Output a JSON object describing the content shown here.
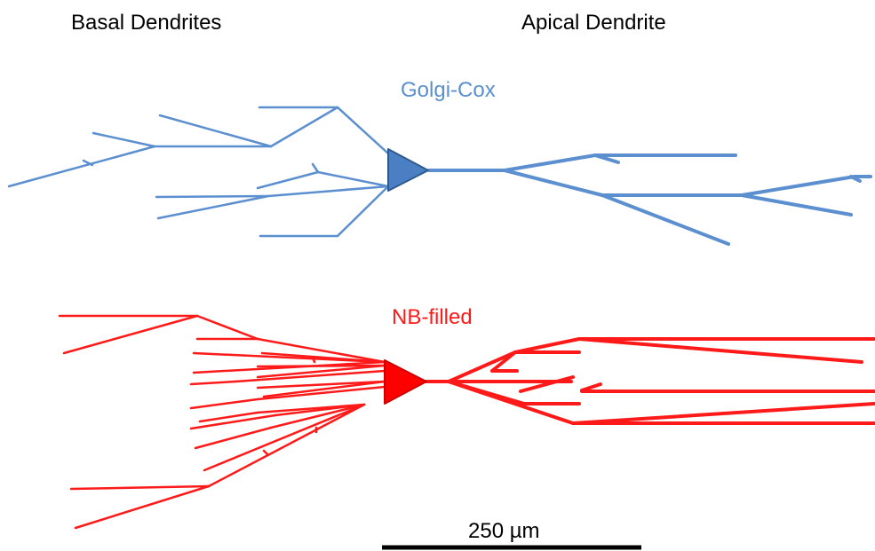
{
  "labels": {
    "basal": "Basal Dendrites",
    "apical": "Apical Dendrite"
  },
  "neurons": {
    "golgi": {
      "label": "Golgi-Cox",
      "color": "#5b8fcf",
      "soma_color": "#4a7fc4",
      "soma_stroke": "#2f5a8f"
    },
    "nb": {
      "label": "NB-filled",
      "color": "#ff1a1a",
      "soma_color": "#ff0000",
      "soma_stroke": "#cc0000"
    }
  },
  "scale_bar": {
    "label": "250 µm"
  }
}
